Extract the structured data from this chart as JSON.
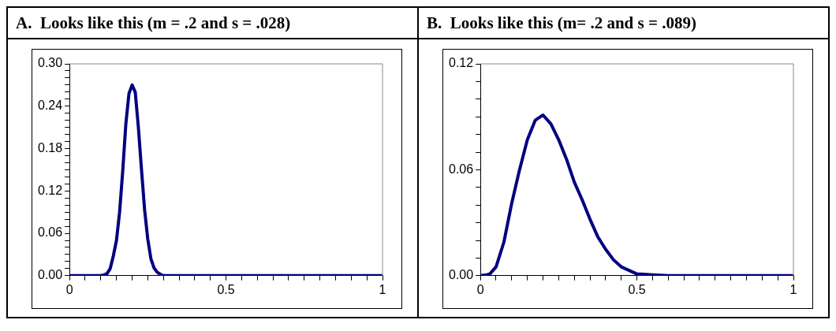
{
  "chart_data": [
    {
      "type": "line",
      "title": "A.  Looks like this (m = .2 and s = .028)",
      "series": [
        {
          "color": "#000080",
          "x": [
            0,
            0.05,
            0.1,
            0.11,
            0.12,
            0.13,
            0.14,
            0.15,
            0.16,
            0.17,
            0.18,
            0.19,
            0.2,
            0.21,
            0.22,
            0.23,
            0.24,
            0.25,
            0.26,
            0.27,
            0.28,
            0.29,
            0.3,
            0.35,
            0.4,
            0.5,
            0.6,
            0.7,
            0.8,
            0.9,
            1
          ],
          "values": [
            0,
            0,
            0,
            0.001,
            0.003,
            0.01,
            0.028,
            0.05,
            0.09,
            0.148,
            0.215,
            0.258,
            0.27,
            0.26,
            0.21,
            0.15,
            0.093,
            0.052,
            0.024,
            0.011,
            0.005,
            0.002,
            0,
            0,
            0,
            0,
            0,
            0,
            0,
            0,
            0
          ]
        }
      ],
      "xlim": [
        0,
        1
      ],
      "xticks": [
        0,
        {
          "value": 0.05,
          "label": null
        },
        {
          "value": 0.1,
          "label": null
        },
        {
          "value": 0.15,
          "label": null
        },
        {
          "value": 0.2,
          "label": null
        },
        {
          "value": 0.25,
          "label": null
        },
        {
          "value": 0.3,
          "label": null
        },
        {
          "value": 0.35,
          "label": null
        },
        {
          "value": 0.4,
          "label": null
        },
        {
          "value": 0.45,
          "label": null
        },
        0.5,
        {
          "value": 0.55,
          "label": null
        },
        {
          "value": 0.6,
          "label": null
        },
        {
          "value": 0.65,
          "label": null
        },
        {
          "value": 0.7,
          "label": null
        },
        {
          "value": 0.75,
          "label": null
        },
        {
          "value": 0.8,
          "label": null
        },
        {
          "value": 0.85,
          "label": null
        },
        {
          "value": 0.9,
          "label": null
        },
        {
          "value": 0.95,
          "label": null
        },
        1
      ],
      "ylim": [
        0,
        0.3
      ],
      "yticks": [
        {
          "value": 0,
          "label": "0.00"
        },
        {
          "value": 0.01,
          "label": null
        },
        {
          "value": 0.02,
          "label": null
        },
        {
          "value": 0.03,
          "label": null
        },
        {
          "value": 0.04,
          "label": null
        },
        {
          "value": 0.05,
          "label": null
        },
        {
          "value": 0.06,
          "label": "0.06"
        },
        {
          "value": 0.07,
          "label": null
        },
        {
          "value": 0.08,
          "label": null
        },
        {
          "value": 0.09,
          "label": null
        },
        {
          "value": 0.1,
          "label": null
        },
        {
          "value": 0.11,
          "label": null
        },
        {
          "value": 0.12,
          "label": "0.12"
        },
        {
          "value": 0.13,
          "label": null
        },
        {
          "value": 0.14,
          "label": null
        },
        {
          "value": 0.15,
          "label": null
        },
        {
          "value": 0.16,
          "label": null
        },
        {
          "value": 0.17,
          "label": null
        },
        {
          "value": 0.18,
          "label": "0.18"
        },
        {
          "value": 0.19,
          "label": null
        },
        {
          "value": 0.2,
          "label": null
        },
        {
          "value": 0.21,
          "label": null
        },
        {
          "value": 0.22,
          "label": null
        },
        {
          "value": 0.23,
          "label": null
        },
        {
          "value": 0.24,
          "label": "0.24"
        },
        {
          "value": 0.25,
          "label": null
        },
        {
          "value": 0.26,
          "label": null
        },
        {
          "value": 0.27,
          "label": null
        },
        {
          "value": 0.28,
          "label": null
        },
        {
          "value": 0.29,
          "label": null
        },
        {
          "value": 0.3,
          "label": "0.30"
        }
      ],
      "grid": false,
      "legend": false
    },
    {
      "type": "line",
      "title": "B.  Looks like this (m= .2 and s = .089)",
      "series": [
        {
          "color": "#000080",
          "x": [
            0,
            0.02,
            0.03,
            0.05,
            0.075,
            0.1,
            0.125,
            0.15,
            0.175,
            0.2,
            0.225,
            0.25,
            0.275,
            0.3,
            0.325,
            0.35,
            0.375,
            0.4,
            0.425,
            0.45,
            0.5,
            0.55,
            0.6,
            0.7,
            0.8,
            0.9,
            1
          ],
          "values": [
            0,
            0.0005,
            0.001,
            0.005,
            0.019,
            0.041,
            0.06,
            0.077,
            0.088,
            0.091,
            0.086,
            0.077,
            0.066,
            0.053,
            0.043,
            0.032,
            0.022,
            0.015,
            0.009,
            0.005,
            0.001,
            0.0005,
            0,
            0,
            0,
            0,
            0
          ]
        }
      ],
      "xlim": [
        0,
        1
      ],
      "xticks": [
        0,
        {
          "value": 0.05,
          "label": null
        },
        {
          "value": 0.1,
          "label": null
        },
        {
          "value": 0.15,
          "label": null
        },
        {
          "value": 0.2,
          "label": null
        },
        {
          "value": 0.25,
          "label": null
        },
        {
          "value": 0.3,
          "label": null
        },
        {
          "value": 0.35,
          "label": null
        },
        {
          "value": 0.4,
          "label": null
        },
        {
          "value": 0.45,
          "label": null
        },
        0.5,
        {
          "value": 0.55,
          "label": null
        },
        {
          "value": 0.6,
          "label": null
        },
        {
          "value": 0.65,
          "label": null
        },
        {
          "value": 0.7,
          "label": null
        },
        {
          "value": 0.75,
          "label": null
        },
        {
          "value": 0.8,
          "label": null
        },
        {
          "value": 0.85,
          "label": null
        },
        {
          "value": 0.9,
          "label": null
        },
        {
          "value": 0.95,
          "label": null
        },
        1
      ],
      "ylim": [
        0,
        0.12
      ],
      "yticks": [
        {
          "value": 0,
          "label": "0.00"
        },
        {
          "value": 0.01,
          "label": null
        },
        {
          "value": 0.02,
          "label": null
        },
        {
          "value": 0.03,
          "label": null
        },
        {
          "value": 0.04,
          "label": null
        },
        {
          "value": 0.05,
          "label": null
        },
        {
          "value": 0.06,
          "label": "0.06"
        },
        {
          "value": 0.07,
          "label": null
        },
        {
          "value": 0.08,
          "label": null
        },
        {
          "value": 0.09,
          "label": null
        },
        {
          "value": 0.1,
          "label": null
        },
        {
          "value": 0.11,
          "label": null
        },
        {
          "value": 0.12,
          "label": "0.12"
        }
      ],
      "grid": false,
      "legend": false
    }
  ]
}
